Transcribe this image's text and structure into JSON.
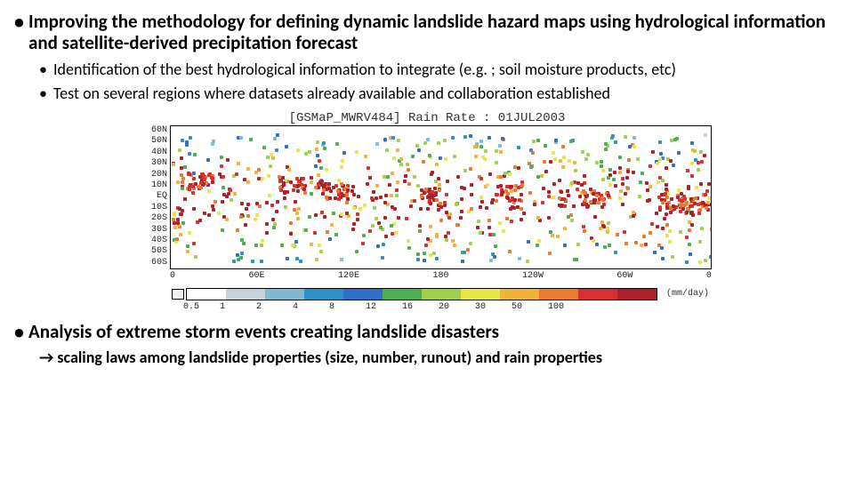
{
  "bullets": {
    "b1": "Improving the methodology for defining dynamic landslide hazard maps using hydrological information and satellite-derived precipitation forecast",
    "b1_sub1": "Identification of the best hydrological information to integrate (e.g. ; soil moisture  products, etc)",
    "b1_sub2": "Test on several regions where datasets already available and collaboration established",
    "b2": "Analysis of extreme storm events creating landslide disasters",
    "b2_arrow": "→ scaling laws among landslide properties (size, number, runout) and rain properties"
  },
  "figure": {
    "title": "[GSMaP_MWRV484]  Rain Rate : 01JUL2003",
    "ylabels": [
      "60N",
      "50N",
      "40N",
      "30N",
      "20N",
      "10N",
      "EQ",
      "10S",
      "20S",
      "30S",
      "40S",
      "50S",
      "60S"
    ],
    "xlabels": [
      "0",
      "60E",
      "120E",
      "180",
      "120W",
      "60W",
      "0"
    ],
    "colorbar": {
      "ticks": [
        "0.5",
        "1",
        "2",
        "4",
        "8",
        "12",
        "16",
        "20",
        "30",
        "50",
        "100"
      ],
      "colors": [
        "#ffffff",
        "#c6d2d8",
        "#7fbad2",
        "#2f8fc8",
        "#2f6fc7",
        "#49b04d",
        "#9fd24a",
        "#e6e648",
        "#f2b33a",
        "#ea7a2e",
        "#d83030",
        "#b0202a"
      ],
      "unit": "(mm/day)"
    },
    "map_bg": "#ffffff",
    "axis_color": "#000000"
  }
}
